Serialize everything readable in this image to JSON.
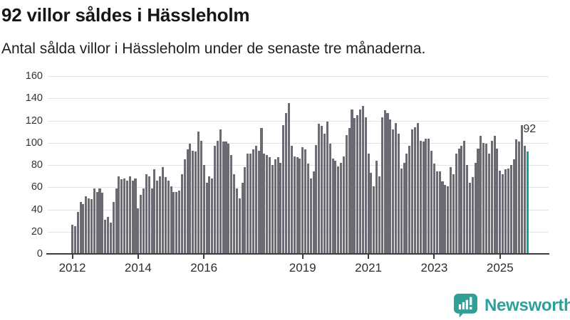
{
  "header": {
    "title": "92 villor såldes i Hässleholm",
    "subtitle": "Antal sålda villor i Hässleholm under de senaste tre månaderna."
  },
  "chart_data": {
    "type": "bar",
    "title": "92 villor såldes i Hässleholm",
    "subtitle": "Antal sålda villor i Hässleholm under de senaste tre månaderna.",
    "x_start": "2012-01",
    "x_end": "2025-11",
    "ylim": [
      0,
      160
    ],
    "yticks": [
      0,
      20,
      40,
      60,
      80,
      100,
      120,
      140,
      160
    ],
    "xtick_years": [
      "2012",
      "2014",
      "2016",
      "2019",
      "2021",
      "2023",
      "2025"
    ],
    "grid": true,
    "bar_color": "#6c6a72",
    "highlight_color": "#11a3a1",
    "annotation": {
      "text": "92",
      "applies_to": "last_bar"
    },
    "series": [
      {
        "name": "Antal sålda villor",
        "start": "2012-01",
        "values": [
          26,
          25,
          38,
          47,
          45,
          52,
          50,
          49,
          59,
          56,
          59,
          55,
          31,
          33,
          28,
          47,
          59,
          70,
          67,
          68,
          66,
          70,
          66,
          68,
          41,
          53,
          59,
          72,
          70,
          59,
          76,
          66,
          70,
          78,
          69,
          66,
          61,
          56,
          56,
          57,
          72,
          85,
          94,
          99,
          93,
          92,
          110,
          102,
          80,
          64,
          70,
          68,
          97,
          102,
          112,
          101,
          101,
          99,
          89,
          72,
          59,
          50,
          64,
          78,
          90,
          90,
          94,
          97,
          93,
          113,
          90,
          89,
          87,
          80,
          85,
          87,
          82,
          116,
          127,
          136,
          97,
          88,
          87,
          86,
          96,
          94,
          81,
          68,
          74,
          98,
          117,
          115,
          108,
          119,
          99,
          86,
          84,
          79,
          82,
          88,
          107,
          113,
          130,
          122,
          125,
          130,
          133,
          123,
          90,
          73,
          61,
          84,
          70,
          123,
          129,
          127,
          121,
          112,
          118,
          108,
          77,
          82,
          90,
          97,
          112,
          114,
          118,
          102,
          101,
          104,
          104,
          93,
          81,
          74,
          74,
          65,
          62,
          61,
          78,
          72,
          90,
          95,
          97,
          102,
          80,
          64,
          69,
          82,
          95,
          106,
          100,
          99,
          90,
          102,
          106,
          95,
          75,
          72,
          76,
          77,
          80,
          85,
          103,
          101,
          116,
          97,
          92
        ]
      }
    ]
  },
  "branding": {
    "wordmark": "Newsworthy",
    "logo_icon": "bar-chart-speech-bubble-icon",
    "teal": "#2f9f99"
  }
}
